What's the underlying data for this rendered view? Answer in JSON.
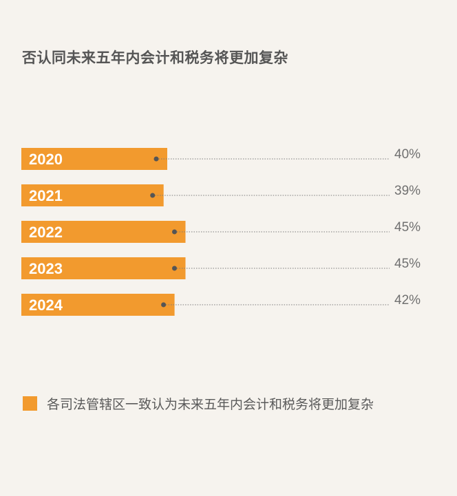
{
  "title": "否认同未来五年内会计和税务将更加复杂",
  "colors": {
    "bar": "#f29a2e",
    "dot": "#555555",
    "leader": "#7a7a7a",
    "background": "#f6f3ee"
  },
  "chart_data": {
    "type": "bar",
    "orientation": "horizontal",
    "categories": [
      "2020",
      "2021",
      "2022",
      "2023",
      "2024"
    ],
    "series": [
      {
        "name": "各司法管辖区一致认为未来五年内会计和税务将更加复杂",
        "values": [
          40,
          39,
          45,
          45,
          42
        ]
      }
    ],
    "value_labels": [
      "40%",
      "39%",
      "45%",
      "45%",
      "42%"
    ],
    "xlim": [
      0,
      100
    ],
    "grid": false,
    "legend": "bottom-left"
  },
  "legend": {
    "label": "各司法管辖区一致认为未来五年内会计和税务将更加复杂"
  }
}
